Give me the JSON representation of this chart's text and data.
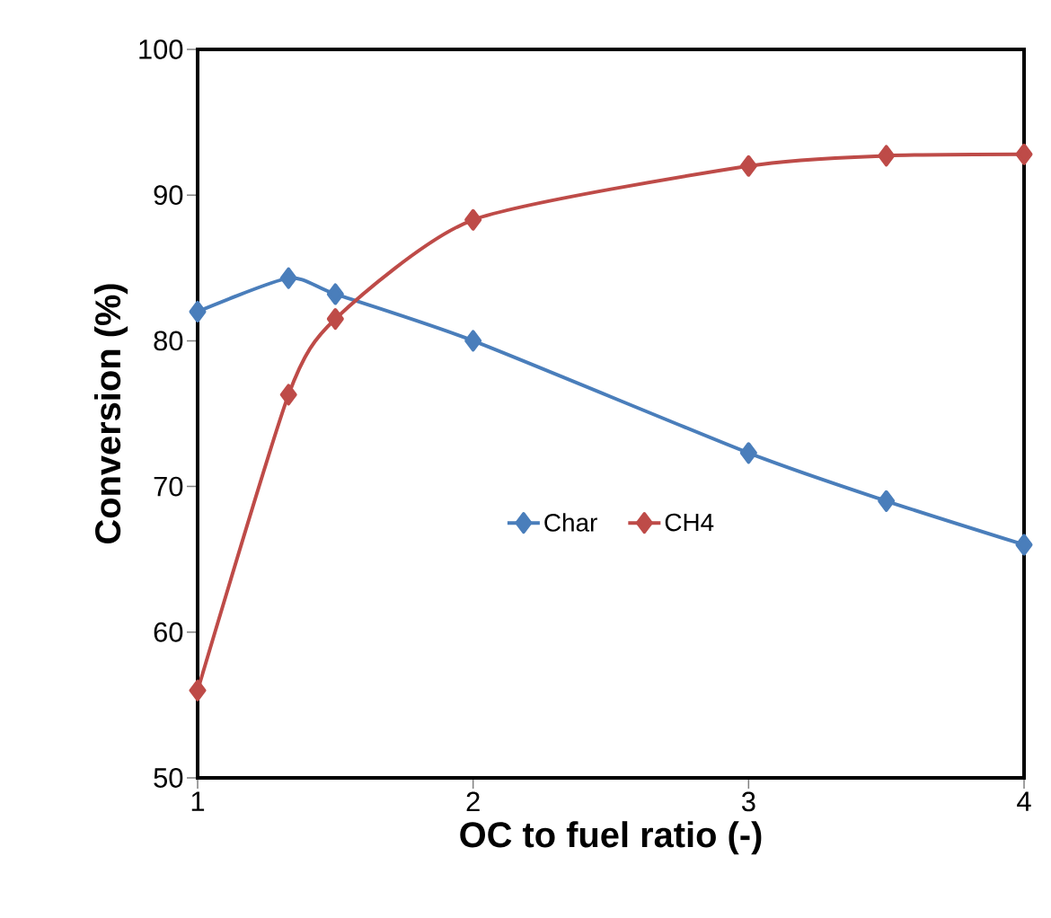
{
  "chart_data": {
    "type": "line",
    "xlabel": "OC to fuel ratio (-)",
    "ylabel": "Conversion (%)",
    "xlim": [
      1,
      4
    ],
    "xticks": [
      1,
      2,
      3,
      4
    ],
    "ylim": [
      50,
      100
    ],
    "yticks": [
      50,
      60,
      70,
      80,
      90,
      100
    ],
    "grid": false,
    "legend": "center",
    "marker": "diamond",
    "line_style": "solid",
    "series": [
      {
        "name": "Char",
        "color": "#4a7ebb",
        "x": [
          1,
          1.33,
          1.5,
          2,
          3,
          3.5,
          4
        ],
        "values": [
          82.0,
          84.3,
          83.2,
          80.0,
          72.3,
          69.0,
          66.0
        ]
      },
      {
        "name": "CH4",
        "color": "#be4b48",
        "x": [
          1,
          1.33,
          1.5,
          2,
          3,
          3.5,
          4
        ],
        "values": [
          56.0,
          76.3,
          81.5,
          88.3,
          92.0,
          92.7,
          92.8
        ]
      }
    ]
  }
}
